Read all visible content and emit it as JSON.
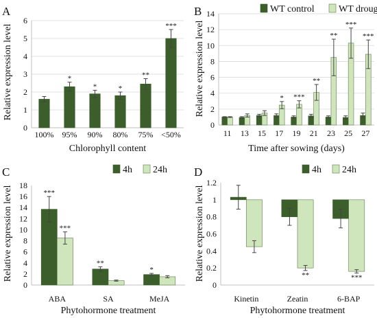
{
  "colors": {
    "dark": "#3b5e2b",
    "light": "#cfe6bd",
    "light_stroke": "#5a7a48",
    "axis": "#bfbfbf",
    "grid": "#d9d9d9"
  },
  "chart_data": [
    {
      "panel": "A",
      "type": "bar",
      "ylabel": "Relative expression level",
      "xlabel": "Chlorophyll content",
      "ylim": [
        0,
        6
      ],
      "yticks": [
        "0",
        "1",
        "2",
        "3",
        "4",
        "5",
        "6"
      ],
      "grid": true,
      "categories": [
        "100%",
        "95%",
        "90%",
        "80%",
        "75%",
        "<50%"
      ],
      "series": [
        {
          "values": [
            1.6,
            2.3,
            1.9,
            1.8,
            2.45,
            5.0
          ],
          "errors": [
            0.15,
            0.25,
            0.2,
            0.2,
            0.3,
            0.5
          ],
          "sig": [
            "",
            "*",
            "*",
            "*",
            "**",
            "***"
          ],
          "color": "dark"
        }
      ]
    },
    {
      "panel": "B",
      "type": "bar",
      "ylabel": "Relative expression level",
      "xlabel": "Time after sowing (days)",
      "ylim": [
        0,
        14
      ],
      "yticks": [
        "0",
        "2",
        "4",
        "6",
        "8",
        "10",
        "12",
        "14"
      ],
      "grid": true,
      "legend_position": "top",
      "categories": [
        "11",
        "13",
        "15",
        "17",
        "19",
        "21",
        "23",
        "25",
        "27"
      ],
      "series": [
        {
          "name": "WT control",
          "values": [
            1.0,
            0.95,
            1.2,
            1.2,
            1.0,
            1.15,
            1.0,
            0.95,
            1.2
          ],
          "errors": [
            0.05,
            0.1,
            0.15,
            0.2,
            0.15,
            0.2,
            0.15,
            0.2,
            0.3
          ],
          "sig": [
            "",
            "",
            "",
            "",
            "",
            "",
            "",
            "",
            ""
          ],
          "color": "dark"
        },
        {
          "name": "WT drought",
          "values": [
            1.0,
            1.2,
            1.5,
            2.5,
            2.6,
            4.1,
            8.5,
            10.3,
            8.9
          ],
          "errors": [
            0.05,
            0.2,
            0.3,
            0.45,
            0.45,
            1.0,
            2.3,
            1.9,
            1.8
          ],
          "sig": [
            "",
            "",
            "",
            "*",
            "***",
            "**",
            "**",
            "***",
            "***"
          ],
          "color": "light"
        }
      ]
    },
    {
      "panel": "C",
      "type": "bar",
      "ylabel": "Relative expression level",
      "xlabel": "Phytohormone treatment",
      "ylim": [
        0,
        18
      ],
      "yticks": [
        "0",
        "2",
        "4",
        "6",
        "8",
        "10",
        "12",
        "14",
        "16",
        "18"
      ],
      "grid": false,
      "legend_position": "top-right",
      "categories": [
        "ABA",
        "SA",
        "MeJA"
      ],
      "series": [
        {
          "name": "4h",
          "values": [
            13.7,
            2.9,
            1.9
          ],
          "errors": [
            2.3,
            0.4,
            0.2
          ],
          "sig": [
            "***",
            "**",
            "*"
          ],
          "color": "dark"
        },
        {
          "name": "24h",
          "values": [
            8.5,
            0.8,
            1.5
          ],
          "errors": [
            1.1,
            0.1,
            0.2
          ],
          "sig": [
            "***",
            "",
            ""
          ],
          "color": "light"
        }
      ]
    },
    {
      "panel": "D",
      "type": "bar",
      "ylabel": "Relative expression level",
      "xlabel": "Phytohormone treatment",
      "ylim": [
        0,
        1.2
      ],
      "baseline": 1.0,
      "yticks": [
        "0",
        "0.2",
        "0.4",
        "0.6",
        "0.8",
        "1",
        "1.2"
      ],
      "grid": false,
      "legend_position": "top-right",
      "categories": [
        "Kinetin",
        "Zeatin",
        "6-BAP"
      ],
      "series": [
        {
          "name": "4h",
          "values": [
            1.03,
            0.8,
            0.78
          ],
          "errors": [
            0.14,
            0.1,
            0.11
          ],
          "sig": [
            "",
            "",
            ""
          ],
          "color": "dark"
        },
        {
          "name": "24h",
          "values": [
            0.45,
            0.2,
            0.16
          ],
          "errors": [
            0.07,
            0.03,
            0.02
          ],
          "sig": [
            "",
            "**",
            "***"
          ],
          "color": "light"
        }
      ]
    }
  ]
}
